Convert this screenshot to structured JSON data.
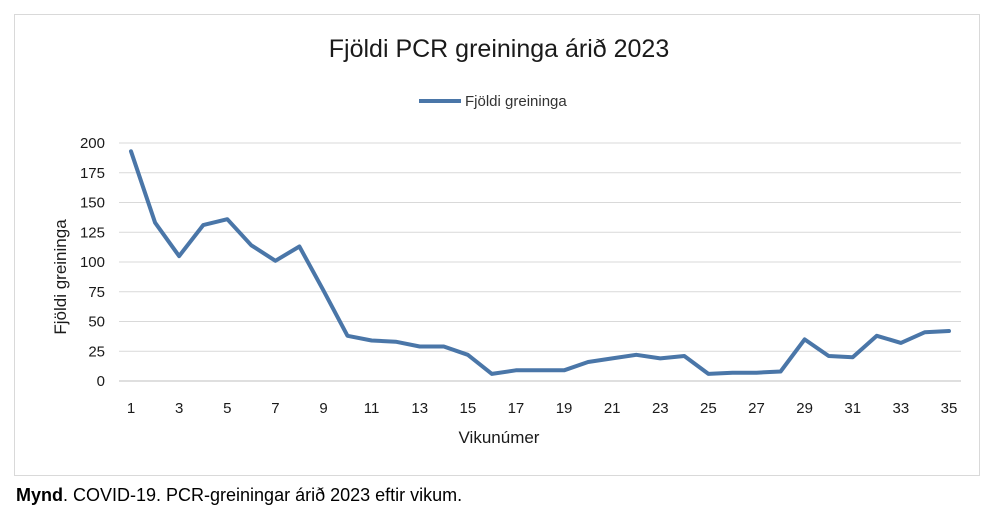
{
  "caption": {
    "bold": "Mynd",
    "text": ". COVID-19. PCR-greiningar árið 2023 eftir vikum."
  },
  "chart_data": {
    "type": "line",
    "title": "Fjöldi PCR greininga árið 2023",
    "xlabel": "Vikunúmer",
    "ylabel": "Fjöldi greininga",
    "x": [
      1,
      2,
      3,
      4,
      5,
      6,
      7,
      8,
      9,
      10,
      11,
      12,
      13,
      14,
      15,
      16,
      17,
      18,
      19,
      20,
      21,
      22,
      23,
      24,
      25,
      26,
      27,
      28,
      29,
      30,
      31,
      32,
      33,
      34,
      35
    ],
    "x_tick_labels": [
      "1",
      "3",
      "5",
      "7",
      "9",
      "11",
      "13",
      "15",
      "17",
      "19",
      "21",
      "23",
      "25",
      "27",
      "29",
      "31",
      "33",
      "35"
    ],
    "y_tick_labels": [
      "0",
      "25",
      "50",
      "75",
      "100",
      "125",
      "150",
      "175",
      "200"
    ],
    "ylim": [
      0,
      200
    ],
    "grid": "horizontal",
    "legend_position": "top",
    "series": [
      {
        "name": "Fjöldi greininga",
        "color": "#4a76a8",
        "values": [
          193,
          133,
          105,
          131,
          136,
          114,
          101,
          113,
          76,
          38,
          34,
          33,
          29,
          29,
          22,
          6,
          9,
          9,
          9,
          16,
          19,
          22,
          19,
          21,
          6,
          7,
          7,
          8,
          35,
          21,
          20,
          38,
          32,
          41,
          42
        ]
      }
    ]
  }
}
